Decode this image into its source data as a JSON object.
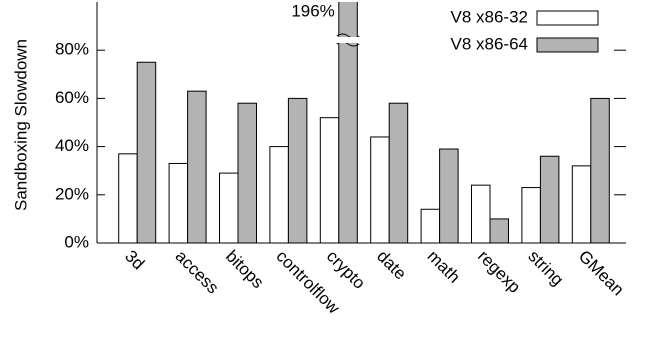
{
  "chart_data": {
    "type": "bar",
    "y_label": "Sandboxing Slowdown",
    "categories": [
      "3d",
      "access",
      "bitops",
      "controlflow",
      "crypto",
      "date",
      "math",
      "regexp",
      "string",
      "GMean"
    ],
    "series": [
      {
        "name": "V8 x86-32",
        "color": "#ffffff",
        "values": [
          37,
          33,
          29,
          40,
          52,
          44,
          14,
          24,
          23,
          32
        ]
      },
      {
        "name": "V8 x86-64",
        "color": "#b3b3b3",
        "values": [
          75,
          63,
          58,
          60,
          196,
          58,
          39,
          10,
          36,
          60
        ],
        "value_labels": [
          null,
          null,
          null,
          null,
          "196%",
          null,
          null,
          null,
          null,
          null
        ]
      }
    ],
    "ylim": [
      0,
      100
    ],
    "yticks": [
      {
        "value": 0,
        "label": "0%"
      },
      {
        "value": 20,
        "label": "20%"
      },
      {
        "value": 40,
        "label": "40%"
      },
      {
        "value": 60,
        "label": "60%"
      },
      {
        "value": 80,
        "label": "80%"
      }
    ],
    "legend": "top-right"
  }
}
